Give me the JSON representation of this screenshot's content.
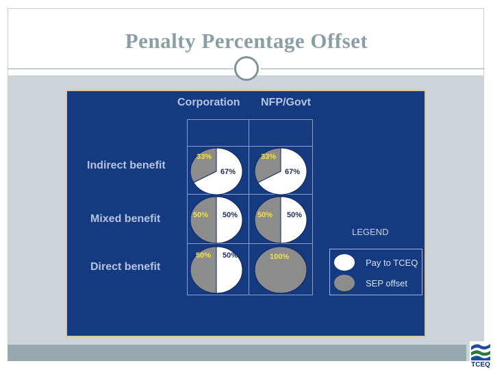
{
  "slide": {
    "title": "Penalty Percentage Offset"
  },
  "table": {
    "columns": [
      "Corporation",
      "NFP/Govt"
    ],
    "rows": [
      "Indirect benefit",
      "Mixed benefit",
      "Direct benefit"
    ]
  },
  "chart_data": {
    "type": "pie",
    "series_names": [
      "Pay to TCEQ",
      "SEP offset"
    ],
    "colors": {
      "pay_to_tceq": "#ffffff",
      "sep_offset": "#8c8c8c",
      "sep_label": "#f5e33a",
      "pay_label": "#1e2b52"
    },
    "pies": [
      {
        "row": "Indirect benefit",
        "column": "Corporation",
        "pay_to_tceq": 67,
        "sep_offset": 33,
        "pay_label": "67%",
        "sep_label": "33%"
      },
      {
        "row": "Indirect benefit",
        "column": "NFP/Govt",
        "pay_to_tceq": 67,
        "sep_offset": 33,
        "pay_label": "67%",
        "sep_label": "33%"
      },
      {
        "row": "Mixed benefit",
        "column": "Corporation",
        "pay_to_tceq": 50,
        "sep_offset": 50,
        "pay_label": "50%",
        "sep_label": "50%"
      },
      {
        "row": "Mixed benefit",
        "column": "NFP/Govt",
        "pay_to_tceq": 50,
        "sep_offset": 50,
        "pay_label": "50%",
        "sep_label": "50%"
      },
      {
        "row": "Direct benefit",
        "column": "Corporation",
        "pay_to_tceq": 50,
        "sep_offset": 50,
        "pay_label": "50%",
        "sep_label": "50%"
      },
      {
        "row": "Direct benefit",
        "column": "NFP/Govt",
        "pay_to_tceq": 0,
        "sep_offset": 100,
        "pay_label": "",
        "sep_label": "100%"
      }
    ]
  },
  "legend": {
    "title": "LEGEND",
    "items": [
      {
        "label": "Pay to TCEQ",
        "color": "#ffffff"
      },
      {
        "label": "SEP offset",
        "color": "#8c8c8c"
      }
    ]
  },
  "logo": {
    "text": "TCEQ"
  }
}
